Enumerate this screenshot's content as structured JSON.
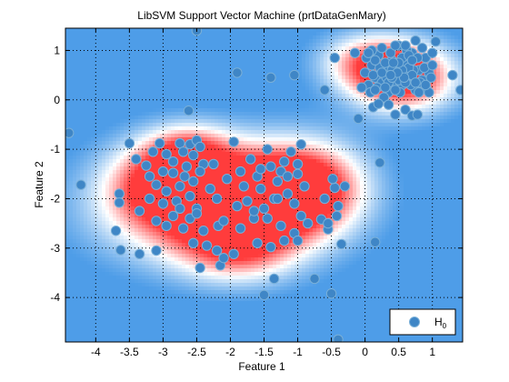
{
  "chart_data": {
    "type": "scatter",
    "title": "LibSVM Support Vector Machine (prtDataGenMary)",
    "xlabel": "Feature 1",
    "ylabel": "Feature 2",
    "xlim": [
      -4.45,
      1.45
    ],
    "ylim": [
      -4.9,
      1.45
    ],
    "xticks": [
      -4,
      -3.5,
      -3,
      -2.5,
      -2,
      -1.5,
      -1,
      -0.5,
      0,
      0.5,
      1
    ],
    "xtick_labels": [
      "-4",
      "-3.5",
      "-3",
      "-2.5",
      "-2",
      "-1.5",
      "-1",
      "-0.5",
      "0",
      "0.5",
      "1"
    ],
    "yticks": [
      -4,
      -3,
      -2,
      -1,
      0,
      1
    ],
    "ytick_labels": [
      "-4",
      "-3",
      "-2",
      "-1",
      "0",
      "1"
    ],
    "grid": true,
    "grid_style": "dotted",
    "legend_position": "bottom-right",
    "background": "decision surface: red = high H0 confidence, blue = low",
    "colors": {
      "marker_fill": "#3f86c6",
      "marker_edge": "#7ab0d8",
      "surface_high": "#ff3c3c",
      "surface_mid": "#ffffff",
      "surface_low": "#4e9de8"
    },
    "series": [
      {
        "name": "H",
        "name_subscript": "0",
        "points": [
          [
            -2.5,
            1.4
          ],
          [
            -1.9,
            0.55
          ],
          [
            -1.4,
            0.45
          ],
          [
            -1.05,
            0.5
          ],
          [
            -0.6,
            0.2
          ],
          [
            -0.45,
            0.85
          ],
          [
            -0.15,
            0.95
          ],
          [
            -0.1,
            -0.38
          ],
          [
            0.12,
            -0.15
          ],
          [
            0.22,
            -1.27
          ],
          [
            0.15,
            -2.88
          ],
          [
            -4.4,
            -0.67
          ],
          [
            -4.22,
            -1.72
          ],
          [
            -3.7,
            -2.65
          ],
          [
            -3.65,
            -1.9
          ],
          [
            -3.65,
            -2.08
          ],
          [
            -3.63,
            -3.04
          ],
          [
            -3.5,
            -0.88
          ],
          [
            -3.35,
            -3.12
          ],
          [
            -3.1,
            -3.05
          ],
          [
            -2.62,
            -0.22
          ],
          [
            -2.45,
            -3.4
          ],
          [
            -2.35,
            -2.95
          ],
          [
            -2.2,
            -3.05
          ],
          [
            -2.18,
            -2.55
          ],
          [
            -2.15,
            -3.35
          ],
          [
            -2.1,
            -3.2
          ],
          [
            -1.95,
            -3.12
          ],
          [
            -1.5,
            -3.95
          ],
          [
            -1.35,
            -3.62
          ],
          [
            -1.4,
            -2.98
          ],
          [
            -0.75,
            -3.62
          ],
          [
            -0.5,
            -3.92
          ],
          [
            -0.4,
            -4.85
          ],
          [
            -0.35,
            -2.92
          ],
          [
            -0.6,
            -2.0
          ],
          [
            -0.55,
            -2.62
          ],
          [
            -0.45,
            -1.78
          ],
          [
            -0.65,
            -2.42
          ],
          [
            -0.4,
            -2.15
          ],
          [
            -0.3,
            -1.75
          ],
          [
            -0.48,
            -1.6
          ],
          [
            -0.55,
            -2.5
          ],
          [
            -0.42,
            -2.35
          ],
          [
            -3.4,
            -1.2
          ],
          [
            -3.25,
            -1.33
          ],
          [
            -3.15,
            -1.05
          ],
          [
            -3.05,
            -0.88
          ],
          [
            -2.95,
            -1.1
          ],
          [
            -2.85,
            -1.25
          ],
          [
            -2.75,
            -0.88
          ],
          [
            -2.7,
            -1.05
          ],
          [
            -2.65,
            -1.35
          ],
          [
            -2.6,
            -0.9
          ],
          [
            -2.55,
            -1.12
          ],
          [
            -2.5,
            -0.82
          ],
          [
            -2.45,
            -0.95
          ],
          [
            -2.4,
            -1.3
          ],
          [
            -3.2,
            -1.55
          ],
          [
            -3.1,
            -1.72
          ],
          [
            -3.0,
            -1.45
          ],
          [
            -2.95,
            -1.85
          ],
          [
            -2.85,
            -1.48
          ],
          [
            -2.8,
            -2.05
          ],
          [
            -2.75,
            -1.75
          ],
          [
            -2.68,
            -1.55
          ],
          [
            -2.6,
            -1.95
          ],
          [
            -2.55,
            -1.65
          ],
          [
            -2.5,
            -2.2
          ],
          [
            -2.45,
            -1.45
          ],
          [
            -2.3,
            -1.8
          ],
          [
            -2.25,
            -1.3
          ],
          [
            -3.35,
            -2.25
          ],
          [
            -3.2,
            -2.0
          ],
          [
            -3.1,
            -2.45
          ],
          [
            -3.0,
            -2.1
          ],
          [
            -2.95,
            -2.55
          ],
          [
            -2.85,
            -2.35
          ],
          [
            -2.75,
            -2.2
          ],
          [
            -2.7,
            -2.6
          ],
          [
            -2.6,
            -2.4
          ],
          [
            -2.55,
            -2.9
          ],
          [
            -2.5,
            -2.3
          ],
          [
            -2.4,
            -2.65
          ],
          [
            -2.2,
            -2.0
          ],
          [
            -2.1,
            -2.45
          ],
          [
            -2.05,
            -1.6
          ],
          [
            -1.95,
            -0.85
          ],
          [
            -1.85,
            -1.45
          ],
          [
            -1.8,
            -1.75
          ],
          [
            -1.75,
            -2.05
          ],
          [
            -1.7,
            -1.2
          ],
          [
            -1.65,
            -2.4
          ],
          [
            -1.6,
            -1.55
          ],
          [
            -1.55,
            -1.8
          ],
          [
            -1.5,
            -2.2
          ],
          [
            -1.45,
            -1.0
          ],
          [
            -1.4,
            -1.35
          ],
          [
            -1.35,
            -2.0
          ],
          [
            -1.3,
            -1.65
          ],
          [
            -1.25,
            -2.55
          ],
          [
            -1.2,
            -1.25
          ],
          [
            -1.15,
            -1.9
          ],
          [
            -1.1,
            -1.05
          ],
          [
            -1.05,
            -2.1
          ],
          [
            -1.0,
            -1.5
          ],
          [
            -0.95,
            -2.35
          ],
          [
            -0.9,
            -1.75
          ],
          [
            -1.05,
            -2.7
          ],
          [
            -1.2,
            -2.85
          ],
          [
            -1.45,
            -2.4
          ],
          [
            -1.6,
            -2.9
          ],
          [
            -1.85,
            -2.6
          ],
          [
            -1.0,
            -2.85
          ],
          [
            -1.25,
            -1.45
          ],
          [
            -0.85,
            -2.5
          ],
          [
            -1.3,
            -2.0
          ],
          [
            -1.65,
            -2.25
          ],
          [
            -1.9,
            -2.15
          ],
          [
            -1.55,
            -1.4
          ],
          [
            -1.15,
            -1.55
          ],
          [
            -0.95,
            -0.9
          ],
          [
            -1.0,
            -1.3
          ],
          [
            0.0,
            0.55
          ],
          [
            0.05,
            0.3
          ],
          [
            0.1,
            0.7
          ],
          [
            0.15,
            0.45
          ],
          [
            0.2,
            0.9
          ],
          [
            0.25,
            0.35
          ],
          [
            0.3,
            0.6
          ],
          [
            0.35,
            0.15
          ],
          [
            0.4,
            0.8
          ],
          [
            0.45,
            0.5
          ],
          [
            0.5,
            1.1
          ],
          [
            0.55,
            0.3
          ],
          [
            0.6,
            0.7
          ],
          [
            0.65,
            0.45
          ],
          [
            0.7,
            0.95
          ],
          [
            0.75,
            0.2
          ],
          [
            0.8,
            0.6
          ],
          [
            0.85,
            0.4
          ],
          [
            0.9,
            0.85
          ],
          [
            0.95,
            0.55
          ],
          [
            0.02,
            0.85
          ],
          [
            0.08,
            0.15
          ],
          [
            0.12,
            0.5
          ],
          [
            0.18,
            0.25
          ],
          [
            0.22,
            0.65
          ],
          [
            0.28,
            0.05
          ],
          [
            0.32,
            0.45
          ],
          [
            0.38,
            0.95
          ],
          [
            0.42,
            0.3
          ],
          [
            0.48,
            0.7
          ],
          [
            0.52,
            0.15
          ],
          [
            0.58,
            0.55
          ],
          [
            0.62,
            1.0
          ],
          [
            0.68,
            0.3
          ],
          [
            0.72,
            0.6
          ],
          [
            0.78,
            0.85
          ],
          [
            0.82,
            0.35
          ],
          [
            0.88,
            0.65
          ],
          [
            0.92,
            0.2
          ],
          [
            0.98,
            0.45
          ],
          [
            0.1,
            1.0
          ],
          [
            0.25,
            1.05
          ],
          [
            0.35,
            -0.1
          ],
          [
            0.45,
            -0.3
          ],
          [
            0.6,
            -0.2
          ],
          [
            0.7,
            -0.32
          ],
          [
            0.78,
            -0.3
          ],
          [
            0.95,
            0.15
          ],
          [
            1.0,
            0.95
          ],
          [
            1.05,
            1.18
          ],
          [
            1.0,
            0.7
          ],
          [
            0.3,
            0.75
          ],
          [
            0.4,
            0.6
          ],
          [
            0.5,
            0.4
          ],
          [
            0.55,
            0.85
          ],
          [
            0.65,
            0.65
          ],
          [
            0.7,
            0.5
          ],
          [
            0.75,
            0.35
          ],
          [
            0.45,
            0.2
          ],
          [
            0.35,
            0.35
          ],
          [
            0.2,
            -0.08
          ],
          [
            -0.05,
            0.25
          ],
          [
            0.05,
            0.95
          ],
          [
            0.15,
            0.2
          ],
          [
            0.55,
            0.6
          ],
          [
            0.6,
            0.35
          ],
          [
            0.5,
            0.75
          ],
          [
            0.4,
            0.45
          ],
          [
            0.85,
            1.05
          ],
          [
            0.9,
            0.3
          ],
          [
            0.8,
            0.15
          ],
          [
            0.65,
            0.9
          ],
          [
            0.3,
            0.25
          ],
          [
            0.25,
            0.55
          ],
          [
            0.15,
            0.8
          ],
          [
            0.7,
            0.8
          ],
          [
            0.58,
            0.45
          ],
          [
            0.48,
            0.55
          ],
          [
            0.42,
            0.75
          ],
          [
            0.38,
            0.5
          ],
          [
            1.3,
            0.5
          ],
          [
            1.42,
            0.2
          ],
          [
            0.75,
            1.2
          ],
          [
            0.6,
            1.1
          ],
          [
            0.45,
            1.1
          ]
        ]
      }
    ]
  }
}
